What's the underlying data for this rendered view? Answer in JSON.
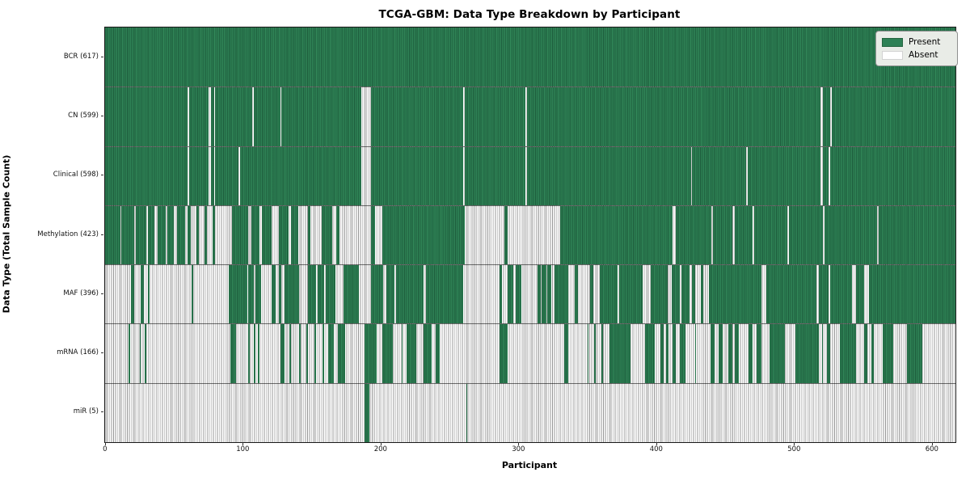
{
  "title": "TCGA-GBM: Data Type Breakdown by Participant",
  "axes": {
    "xlabel": "Participant",
    "ylabel": "Data Type (Total Sample Count)"
  },
  "legend": {
    "items": [
      {
        "label": "Present",
        "state": "present",
        "color": "#2e8156"
      },
      {
        "label": "Absent",
        "state": "absent",
        "color": "#ffffff"
      }
    ]
  },
  "colors": {
    "present_fill": "#2e8156",
    "present_edge": "#1e5e3d",
    "absent_fill": "#ffffff",
    "absent_edge": "#979797"
  },
  "chart_data": {
    "type": "heatmap",
    "subtype": "presence-absence-matrix",
    "title": "TCGA-GBM: Data Type Breakdown by Participant",
    "xlabel": "Participant",
    "ylabel": "Data Type (Total Sample Count)",
    "x_range": [
      0,
      617
    ],
    "n_participants": 617,
    "x_ticks": [
      0,
      100,
      200,
      300,
      400,
      500,
      600
    ],
    "legend_position": "upper right",
    "grid": false,
    "states": {
      "present": 1,
      "absent": 0
    },
    "rows": [
      {
        "name": "BCR",
        "label": "BCR (617)",
        "count": 617,
        "present_runs": [
          [
            0,
            617
          ]
        ]
      },
      {
        "name": "CN",
        "label": "CN (599)",
        "count": 599,
        "present_runs": [
          [
            0,
            60
          ],
          [
            61,
            75
          ],
          [
            77,
            79
          ],
          [
            80,
            107
          ],
          [
            108,
            127
          ],
          [
            128,
            186
          ],
          [
            193,
            260
          ],
          [
            261,
            305
          ],
          [
            306,
            519
          ],
          [
            521,
            526
          ],
          [
            527,
            617
          ]
        ]
      },
      {
        "name": "Clinical",
        "label": "Clinical (598)",
        "count": 598,
        "present_runs": [
          [
            0,
            60
          ],
          [
            61,
            75
          ],
          [
            77,
            79
          ],
          [
            80,
            97
          ],
          [
            98,
            186
          ],
          [
            193,
            260
          ],
          [
            261,
            305
          ],
          [
            306,
            425
          ],
          [
            426,
            465
          ],
          [
            466,
            519
          ],
          [
            521,
            525
          ],
          [
            526,
            617
          ]
        ]
      },
      {
        "name": "Methylation",
        "label": "Methylation (423)",
        "count": 423,
        "present_runs": [
          [
            0,
            11
          ],
          [
            12,
            21
          ],
          [
            22,
            30
          ],
          [
            31,
            36
          ],
          [
            38,
            44
          ],
          [
            45,
            50
          ],
          [
            52,
            58
          ],
          [
            60,
            62
          ],
          [
            66,
            68
          ],
          [
            72,
            74
          ],
          [
            78,
            80
          ],
          [
            92,
            104
          ],
          [
            106,
            112
          ],
          [
            114,
            121
          ],
          [
            126,
            133
          ],
          [
            135,
            140
          ],
          [
            147,
            149
          ],
          [
            157,
            165
          ],
          [
            168,
            170
          ],
          [
            193,
            196
          ],
          [
            201,
            261
          ],
          [
            290,
            292
          ],
          [
            330,
            412
          ],
          [
            414,
            440
          ],
          [
            441,
            455
          ],
          [
            457,
            470
          ],
          [
            471,
            495
          ],
          [
            496,
            521
          ],
          [
            522,
            560
          ],
          [
            561,
            617
          ]
        ]
      },
      {
        "name": "MAF",
        "label": "MAF (396)",
        "count": 396,
        "present_runs": [
          [
            19,
            21
          ],
          [
            26,
            28
          ],
          [
            31,
            32
          ],
          [
            63,
            64
          ],
          [
            90,
            103
          ],
          [
            104,
            108
          ],
          [
            109,
            113
          ],
          [
            121,
            124
          ],
          [
            126,
            128
          ],
          [
            130,
            141
          ],
          [
            147,
            153
          ],
          [
            154,
            159
          ],
          [
            160,
            167
          ],
          [
            173,
            184
          ],
          [
            193,
            202
          ],
          [
            204,
            210
          ],
          [
            211,
            231
          ],
          [
            233,
            260
          ],
          [
            286,
            288
          ],
          [
            292,
            296
          ],
          [
            298,
            302
          ],
          [
            314,
            316
          ],
          [
            317,
            320
          ],
          [
            321,
            324
          ],
          [
            326,
            336
          ],
          [
            341,
            343
          ],
          [
            352,
            354
          ],
          [
            359,
            372
          ],
          [
            373,
            390
          ],
          [
            396,
            408
          ],
          [
            411,
            417
          ],
          [
            418,
            424
          ],
          [
            426,
            428
          ],
          [
            432,
            434
          ],
          [
            438,
            476
          ],
          [
            480,
            516
          ],
          [
            518,
            525
          ],
          [
            526,
            542
          ],
          [
            545,
            551
          ],
          [
            554,
            617
          ]
        ]
      },
      {
        "name": "mRNA",
        "label": "mRNA (166)",
        "count": 166,
        "present_runs": [
          [
            17,
            18
          ],
          [
            25,
            26
          ],
          [
            29,
            30
          ],
          [
            91,
            95
          ],
          [
            104,
            105
          ],
          [
            108,
            109
          ],
          [
            111,
            112
          ],
          [
            127,
            130
          ],
          [
            134,
            135
          ],
          [
            141,
            142
          ],
          [
            146,
            147
          ],
          [
            152,
            153
          ],
          [
            158,
            159
          ],
          [
            162,
            166
          ],
          [
            169,
            174
          ],
          [
            188,
            197
          ],
          [
            201,
            209
          ],
          [
            215,
            216
          ],
          [
            219,
            226
          ],
          [
            231,
            237
          ],
          [
            240,
            243
          ],
          [
            286,
            292
          ],
          [
            333,
            336
          ],
          [
            350,
            351
          ],
          [
            355,
            356
          ],
          [
            360,
            361
          ],
          [
            366,
            381
          ],
          [
            392,
            399
          ],
          [
            403,
            405
          ],
          [
            407,
            409
          ],
          [
            412,
            414
          ],
          [
            417,
            421
          ],
          [
            428,
            429
          ],
          [
            439,
            442
          ],
          [
            445,
            448
          ],
          [
            452,
            455
          ],
          [
            457,
            460
          ],
          [
            467,
            470
          ],
          [
            473,
            476
          ],
          [
            482,
            493
          ],
          [
            501,
            518
          ],
          [
            520,
            521
          ],
          [
            524,
            526
          ],
          [
            533,
            545
          ],
          [
            551,
            553
          ],
          [
            556,
            558
          ],
          [
            564,
            572
          ],
          [
            582,
            593
          ]
        ]
      },
      {
        "name": "miR",
        "label": "miR (5)",
        "count": 5,
        "present_runs": [
          [
            188,
            192
          ],
          [
            262,
            263
          ]
        ]
      }
    ]
  }
}
